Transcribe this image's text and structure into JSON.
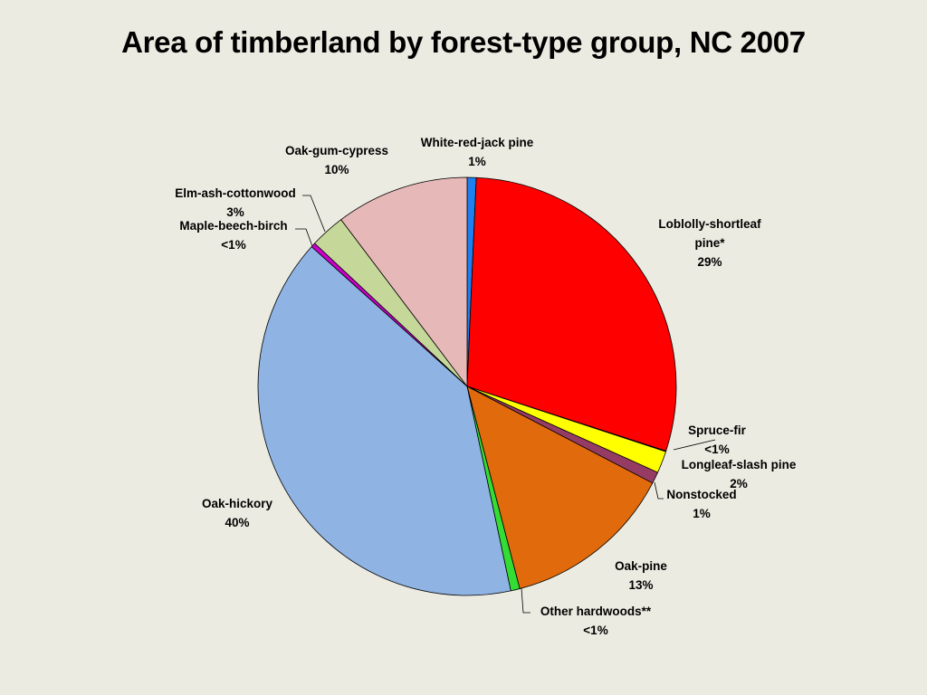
{
  "title": "Area of timberland by forest-type group, NC 2007",
  "chart_data": {
    "type": "pie",
    "title": "Area of timberland by forest-type group, NC 2007",
    "start": "top",
    "direction": "clockwise",
    "slices": [
      {
        "name": "White-red-jack pine",
        "label": "1%",
        "value": 0.7,
        "color": "#1e7ff0"
      },
      {
        "name": "Loblolly-shortleaf pine*",
        "label": "29%",
        "value": 29.3,
        "color": "#ff0000"
      },
      {
        "name": "Spruce-fir",
        "label": "<1%",
        "value": 0.05,
        "color": "#5a5a5a"
      },
      {
        "name": "Longleaf-slash pine",
        "label": "2%",
        "value": 1.7,
        "color": "#ffff00"
      },
      {
        "name": "Nonstocked",
        "label": "1%",
        "value": 0.9,
        "color": "#963c64"
      },
      {
        "name": "Oak-pine",
        "label": "13%",
        "value": 13.3,
        "color": "#e06a0c"
      },
      {
        "name": "Other hardwoods**",
        "label": "<1%",
        "value": 0.7,
        "color": "#33dd33"
      },
      {
        "name": "Oak-hickory",
        "label": "40%",
        "value": 40.0,
        "color": "#8fb3e3"
      },
      {
        "name": "Maple-beech-birch",
        "label": "<1%",
        "value": 0.35,
        "color": "#cc00cc"
      },
      {
        "name": "Elm-ash-cottonwood",
        "label": "3%",
        "value": 2.7,
        "color": "#c5d89a"
      },
      {
        "name": "Oak-gum-cypress",
        "label": "10%",
        "value": 10.3,
        "color": "#e6b8b7"
      }
    ]
  }
}
